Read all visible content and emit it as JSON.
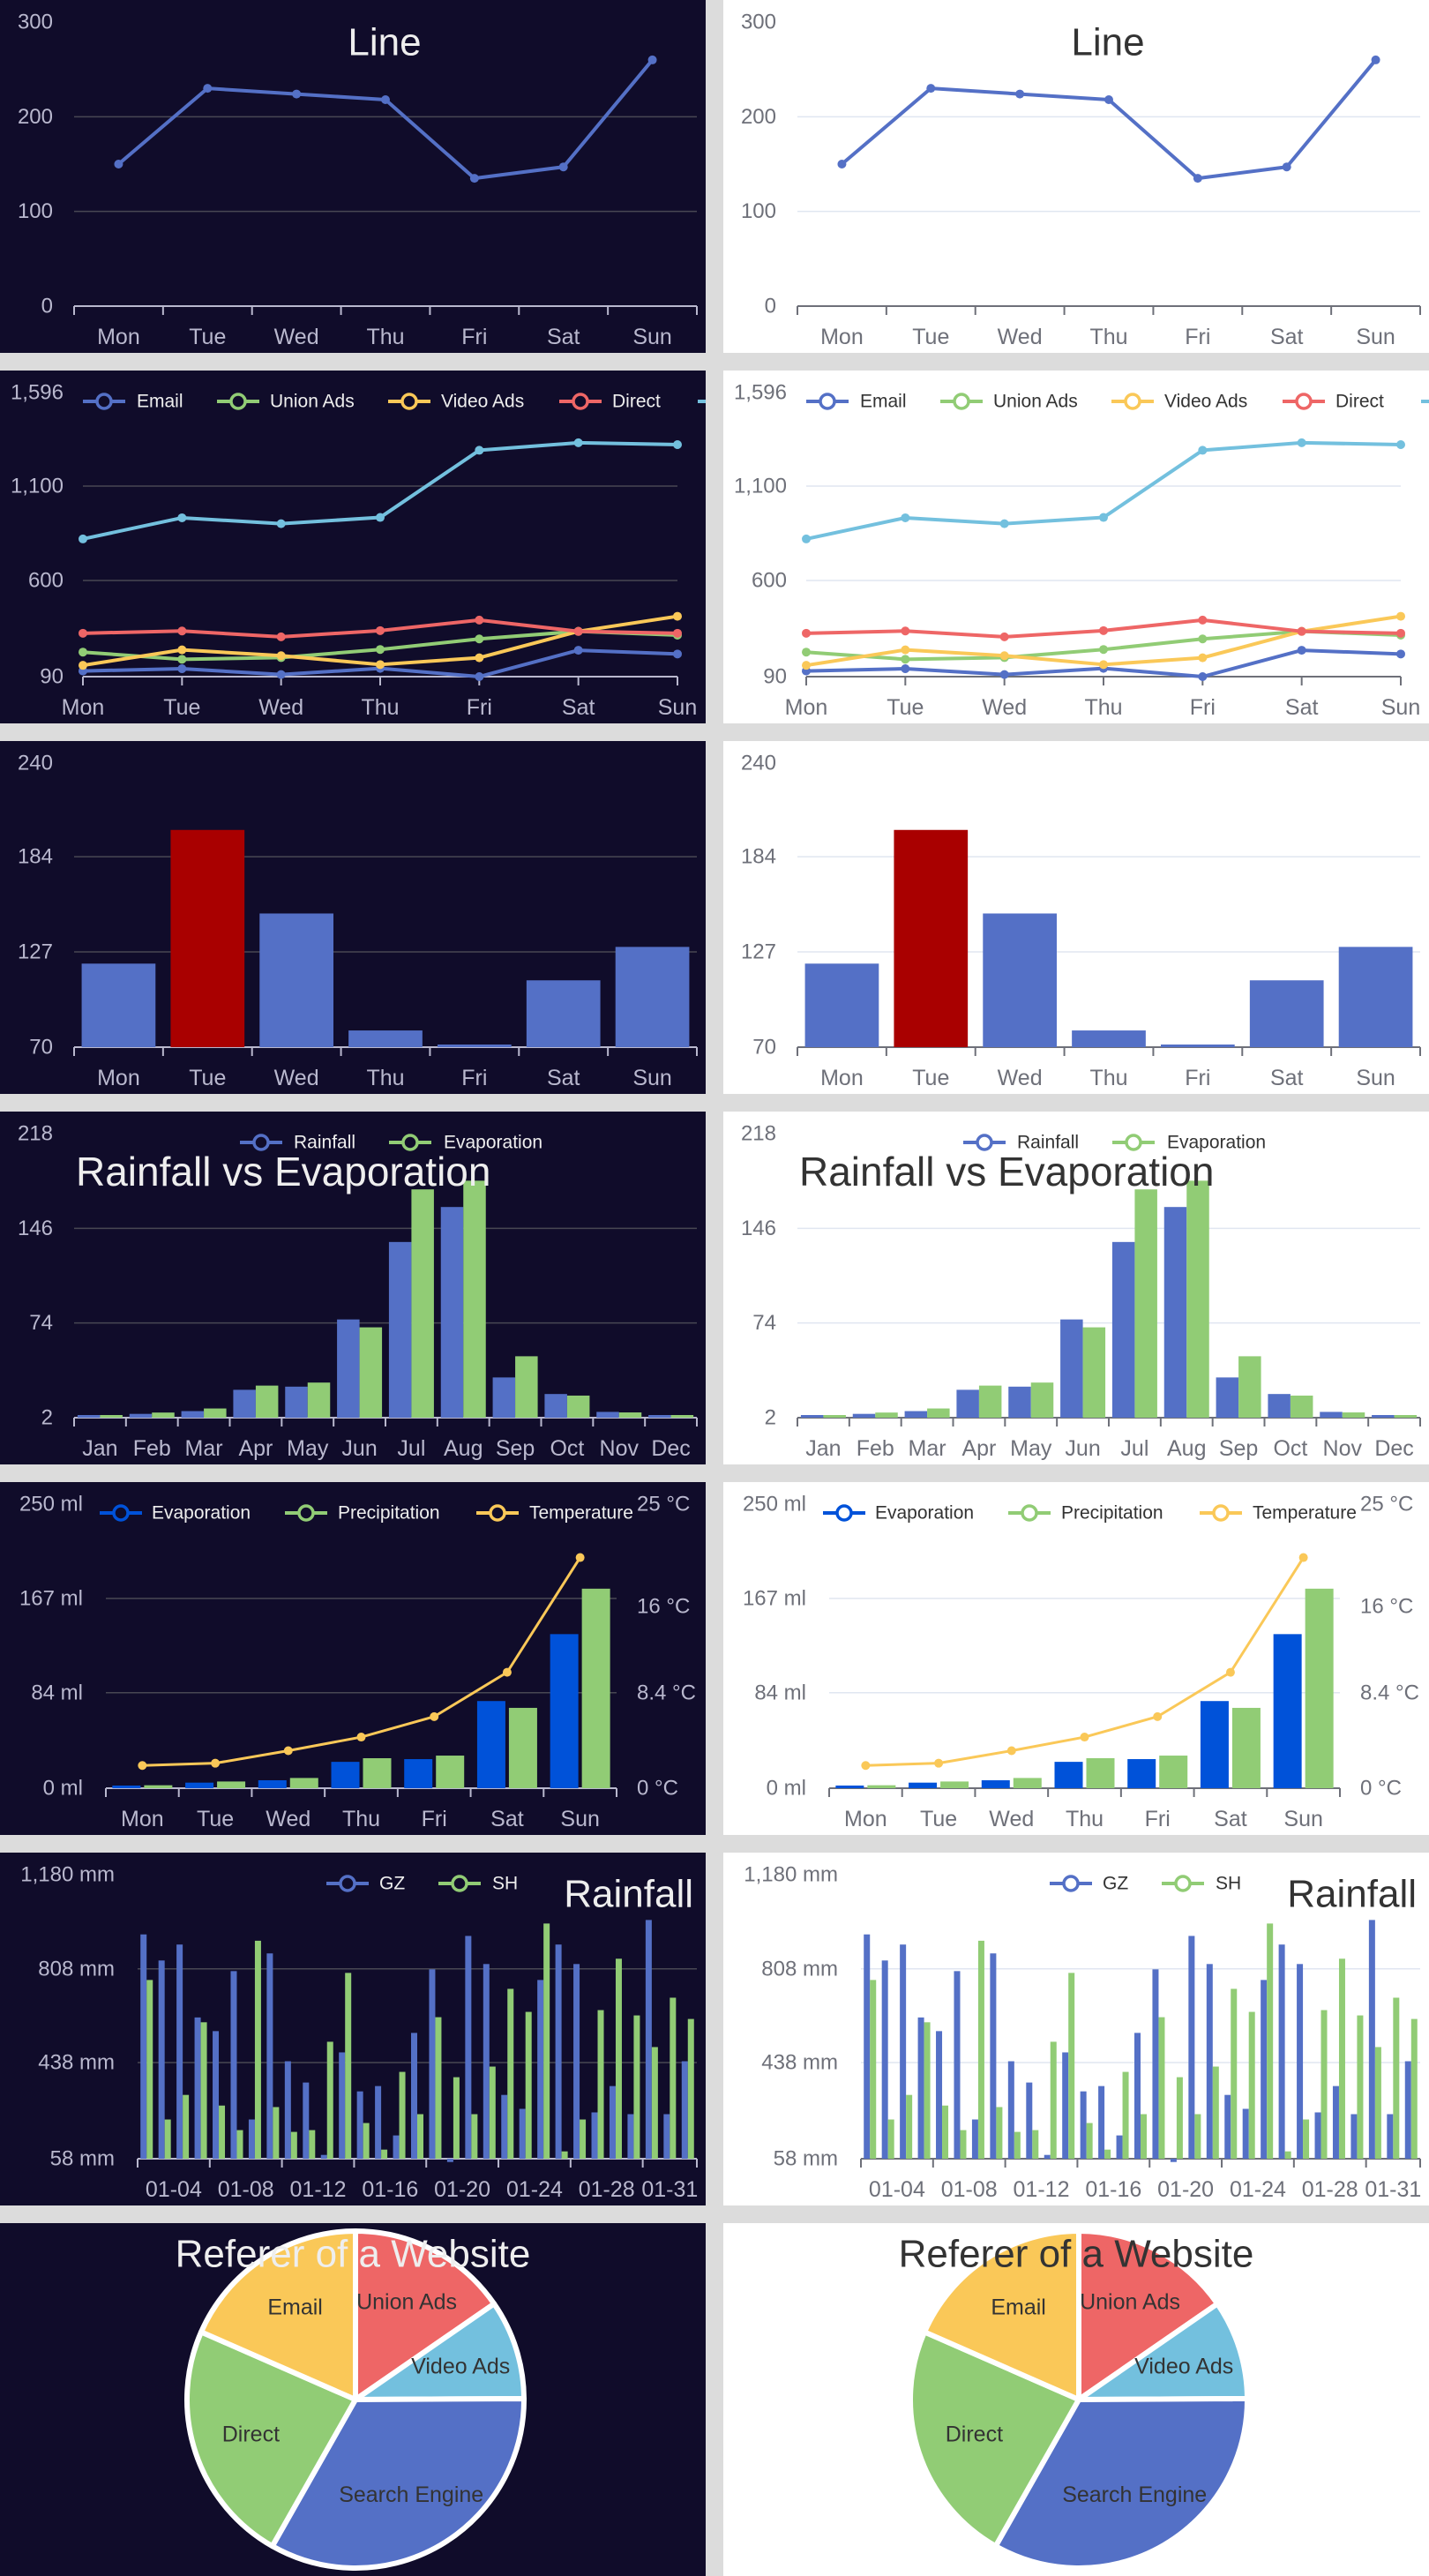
{
  "themes": [
    {
      "name": "dark",
      "background": "#100c2a",
      "text": "#b9b8ce",
      "legend_text": "#eeeeee",
      "title": "#eeeeee",
      "grid": "#484753",
      "axis": "#b9b8ce",
      "pie_border": "#ffffff"
    },
    {
      "name": "light",
      "background": "#ffffff",
      "text": "#6e7079",
      "legend_text": "#333333",
      "title": "#333333",
      "grid": "#e0e6f1",
      "axis": "#6e7079",
      "pie_border": "#ffffff"
    }
  ],
  "chart_data": [
    {
      "type": "line",
      "title": "Line",
      "categories": [
        "Mon",
        "Tue",
        "Wed",
        "Thu",
        "Fri",
        "Sat",
        "Sun"
      ],
      "y_ticks": [
        "0",
        "100",
        "200",
        "300"
      ],
      "ylim": [
        0,
        300
      ],
      "grid": true,
      "series": [
        {
          "color": "#5470c6",
          "values": [
            150,
            230,
            224,
            218,
            135,
            147,
            260
          ]
        }
      ]
    },
    {
      "type": "line",
      "categories": [
        "Mon",
        "Tue",
        "Wed",
        "Thu",
        "Fri",
        "Sat",
        "Sun"
      ],
      "y_ticks": [
        "90",
        "600",
        "1,100",
        "1,596"
      ],
      "ylim": [
        90,
        1596
      ],
      "grid": true,
      "legend": "top",
      "series": [
        {
          "name": "Email",
          "color": "#5470c6",
          "values": [
            120,
            132,
            101,
            134,
            90,
            230,
            210
          ]
        },
        {
          "name": "Union Ads",
          "color": "#91cc75",
          "values": [
            220,
            182,
            191,
            234,
            290,
            330,
            310
          ]
        },
        {
          "name": "Video Ads",
          "color": "#fac858",
          "values": [
            150,
            232,
            201,
            154,
            190,
            330,
            410
          ]
        },
        {
          "name": "Direct",
          "color": "#ee6666",
          "values": [
            320,
            332,
            301,
            334,
            390,
            330,
            320
          ]
        },
        {
          "color": "#73c0de",
          "values": [
            820,
            932,
            901,
            934,
            1290,
            1330,
            1320
          ]
        }
      ]
    },
    {
      "type": "bar",
      "categories": [
        "Mon",
        "Tue",
        "Wed",
        "Thu",
        "Fri",
        "Sat",
        "Sun"
      ],
      "y_ticks": [
        "70",
        "127",
        "184",
        "240"
      ],
      "ylim": [
        70,
        240
      ],
      "grid": true,
      "bar_color": "#5470c6",
      "highlight_color": "#a90000",
      "highlight_category": "Tue",
      "values": [
        120,
        200,
        150,
        80,
        70,
        110,
        130
      ]
    },
    {
      "type": "bar",
      "title": "Rainfall vs Evaporation",
      "categories": [
        "Jan",
        "Feb",
        "Mar",
        "Apr",
        "May",
        "Jun",
        "Jul",
        "Aug",
        "Sep",
        "Oct",
        "Nov",
        "Dec"
      ],
      "y_ticks": [
        "2",
        "74",
        "146",
        "218"
      ],
      "ylim": [
        2,
        218
      ],
      "grid": true,
      "legend": "top",
      "series": [
        {
          "name": "Rainfall",
          "color": "#5470c6",
          "values": [
            2.0,
            4.9,
            7.0,
            23.2,
            25.6,
            76.7,
            135.6,
            162.2,
            32.6,
            20.0,
            6.4,
            3.3
          ]
        },
        {
          "name": "Evaporation",
          "color": "#91cc75",
          "values": [
            2.6,
            5.9,
            9.0,
            26.4,
            28.7,
            70.7,
            175.6,
            182.2,
            48.7,
            18.8,
            6.0,
            2.3
          ]
        }
      ]
    },
    {
      "type": "bar+line",
      "categories": [
        "Mon",
        "Tue",
        "Wed",
        "Thu",
        "Fri",
        "Sat",
        "Sun"
      ],
      "y_ticks": [
        "0 ml",
        "84 ml",
        "167 ml",
        "250 ml"
      ],
      "ylim": [
        0,
        250
      ],
      "y2_ticks": [
        "0 °C",
        "8.4 °C",
        "16 °C",
        "25 °C"
      ],
      "y2lim": [
        0,
        25
      ],
      "grid": true,
      "legend": "top",
      "series": [
        {
          "name": "Evaporation",
          "kind": "bar",
          "axis": "left",
          "color": "#0052d9",
          "values": [
            2.0,
            4.9,
            7.0,
            23.2,
            25.6,
            76.7,
            135.6
          ]
        },
        {
          "name": "Precipitation",
          "kind": "bar",
          "axis": "left",
          "color": "#91cc75",
          "values": [
            2.6,
            5.9,
            9.0,
            26.4,
            28.7,
            70.7,
            175.6
          ]
        },
        {
          "name": "Temperature",
          "kind": "line",
          "axis": "right",
          "color": "#fac858",
          "values": [
            2.0,
            2.2,
            3.3,
            4.5,
            6.3,
            10.2,
            20.3
          ]
        }
      ]
    },
    {
      "type": "bar",
      "title": "Rainfall",
      "x_tick_labels": [
        "01-04",
        "01-08",
        "01-12",
        "01-16",
        "01-20",
        "01-24",
        "01-28",
        "01-31"
      ],
      "y_ticks": [
        "58 mm",
        "438 mm",
        "808 mm",
        "1,180 mm"
      ],
      "ylim": [
        58,
        1180
      ],
      "grid": true,
      "legend": "top",
      "series": [
        {
          "name": "GZ",
          "color": "#5470c6",
          "values": [
            944,
            841,
            904,
            616,
            562,
            799,
            213,
            869,
            443,
            359,
            73,
            478,
            324,
            345,
            150,
            555,
            806,
            45,
            938,
            827,
            310,
            255,
            764,
            904,
            827,
            241,
            345,
            234,
            1001,
            234,
            443
          ]
        },
        {
          "name": "SH",
          "color": "#91cc75",
          "values": [
            764,
            213,
            310,
            597,
            268,
            171,
            919,
            262,
            164,
            171,
            520,
            792,
            199,
            94,
            401,
            234,
            617,
            380,
            234,
            422,
            729,
            638,
            987,
            87,
            213,
            645,
            848,
            624,
            499,
            694,
            610
          ]
        }
      ]
    },
    {
      "type": "pie",
      "title": "Referer of a Website",
      "slices": [
        {
          "name": "Union Ads",
          "value": 484,
          "color": "#ee6666"
        },
        {
          "name": "Video Ads",
          "value": 300,
          "color": "#73c0de"
        },
        {
          "name": "Search Engine",
          "value": 1048,
          "color": "#5470c6"
        },
        {
          "name": "Direct",
          "value": 735,
          "color": "#91cc75"
        },
        {
          "name": "Email",
          "value": 580,
          "color": "#fac858"
        }
      ]
    }
  ]
}
